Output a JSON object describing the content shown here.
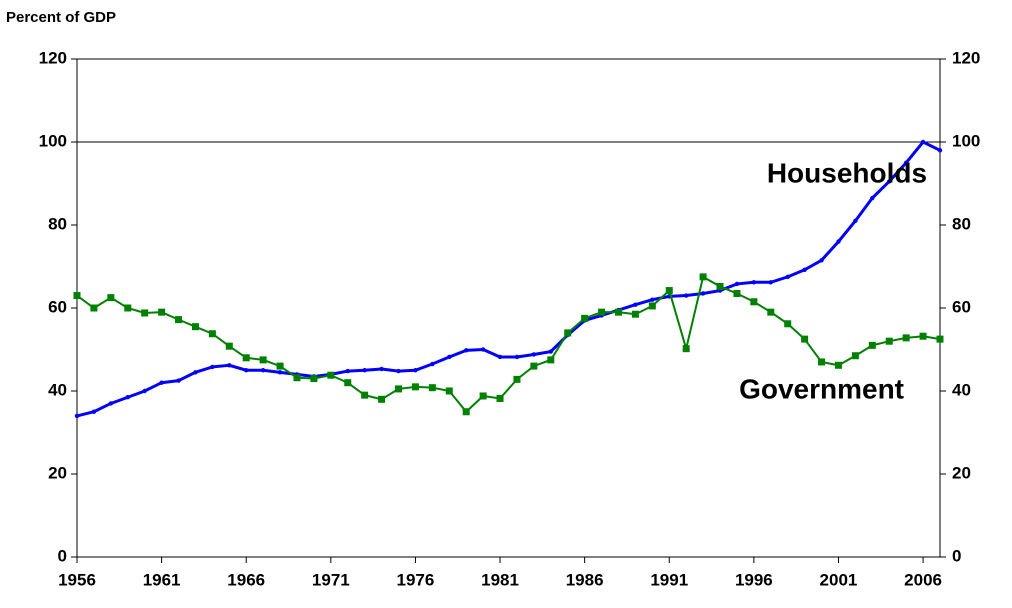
{
  "chart_data": {
    "type": "line",
    "y_label": "Percent of GDP",
    "x": [
      1956,
      1957,
      1958,
      1959,
      1960,
      1961,
      1962,
      1963,
      1964,
      1965,
      1966,
      1967,
      1968,
      1969,
      1970,
      1971,
      1972,
      1973,
      1974,
      1975,
      1976,
      1977,
      1978,
      1979,
      1980,
      1981,
      1982,
      1983,
      1984,
      1985,
      1986,
      1987,
      1988,
      1989,
      1990,
      1991,
      1992,
      1993,
      1994,
      1995,
      1996,
      1997,
      1998,
      1999,
      2000,
      2001,
      2002,
      2003,
      2004,
      2005,
      2006,
      2007
    ],
    "series": [
      {
        "name": "Households",
        "color": "#0000ff",
        "marker": "dot",
        "values": [
          34,
          35,
          37,
          38.5,
          40,
          42,
          42.5,
          44.5,
          45.8,
          46.2,
          45,
          45,
          44.5,
          44,
          43.5,
          44,
          44.8,
          45,
          45.3,
          44.8,
          45,
          46.5,
          48.2,
          49.8,
          50,
          48.2,
          48.2,
          48.8,
          49.5,
          53.5,
          57,
          58.2,
          59.5,
          60.8,
          62,
          62.8,
          63,
          63.5,
          64.2,
          65.8,
          66.2,
          66.2,
          67.5,
          69.2,
          71.5,
          76,
          81,
          86.5,
          90.5,
          95,
          100,
          98
        ]
      },
      {
        "name": "Government",
        "color": "#008000",
        "marker": "square",
        "values": [
          63,
          60,
          62.5,
          60,
          58.8,
          59,
          57.2,
          55.5,
          53.8,
          50.8,
          48,
          47.5,
          46,
          43.2,
          43,
          43.8,
          42,
          39,
          38,
          40.5,
          41,
          40.8,
          40,
          35,
          38.8,
          38.2,
          42.8,
          46,
          47.5,
          54,
          57.5,
          59,
          59,
          58.5,
          60.5,
          64.2,
          50.2,
          67.5,
          65.2,
          63.5,
          61.5,
          59,
          56.2,
          52.5,
          47,
          46.2,
          48.5,
          51,
          52,
          52.8,
          53.2,
          52.5
        ]
      }
    ],
    "xlim": [
      1956,
      2007
    ],
    "xticks": [
      1956,
      1961,
      1966,
      1971,
      1976,
      1981,
      1986,
      1991,
      1996,
      2001,
      2006
    ],
    "ylim": [
      0,
      120
    ],
    "yticks": [
      0,
      20,
      40,
      60,
      80,
      100,
      120
    ],
    "y2lim": [
      0,
      120
    ],
    "y2ticks": [
      0,
      20,
      40,
      60,
      80,
      100,
      120
    ],
    "hline": 100,
    "annotations": [
      {
        "text": "Households",
        "x": 2001.5,
        "y": 92
      },
      {
        "text": "Government",
        "x": 2000,
        "y": 40
      }
    ]
  }
}
